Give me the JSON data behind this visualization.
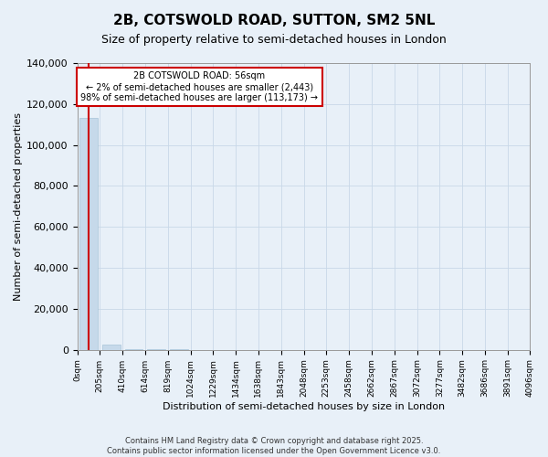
{
  "title": "2B, COTSWOLD ROAD, SUTTON, SM2 5NL",
  "subtitle": "Size of property relative to semi-detached houses in London",
  "xlabel": "Distribution of semi-detached houses by size in London",
  "ylabel": "Number of semi-detached properties",
  "annotation_text": "2B COTSWOLD ROAD: 56sqm\n← 2% of semi-detached houses are smaller (2,443)\n98% of semi-detached houses are larger (113,173) →",
  "bin_labels": [
    "0sqm",
    "205sqm",
    "410sqm",
    "614sqm",
    "819sqm",
    "1024sqm",
    "1229sqm",
    "1434sqm",
    "1638sqm",
    "1843sqm",
    "2048sqm",
    "2253sqm",
    "2458sqm",
    "2662sqm",
    "2867sqm",
    "3072sqm",
    "3277sqm",
    "3482sqm",
    "3686sqm",
    "3891sqm",
    "4096sqm"
  ],
  "bar_heights": [
    113173,
    2443,
    300,
    150,
    80,
    40,
    20,
    10,
    5,
    3,
    2,
    1,
    1,
    0,
    0,
    0,
    0,
    0,
    0,
    0
  ],
  "bar_color": "#c6d9ea",
  "bar_edgecolor": "#a8c4d8",
  "redline_color": "#cc0000",
  "annotation_box_facecolor": "#ffffff",
  "annotation_box_edgecolor": "#cc0000",
  "grid_color": "#c8d8e8",
  "background_color": "#e8f0f8",
  "ylim": [
    0,
    140000
  ],
  "yticks": [
    0,
    20000,
    40000,
    60000,
    80000,
    100000,
    120000,
    140000
  ],
  "footer_line1": "Contains HM Land Registry data © Crown copyright and database right 2025.",
  "footer_line2": "Contains public sector information licensed under the Open Government Licence v3.0."
}
